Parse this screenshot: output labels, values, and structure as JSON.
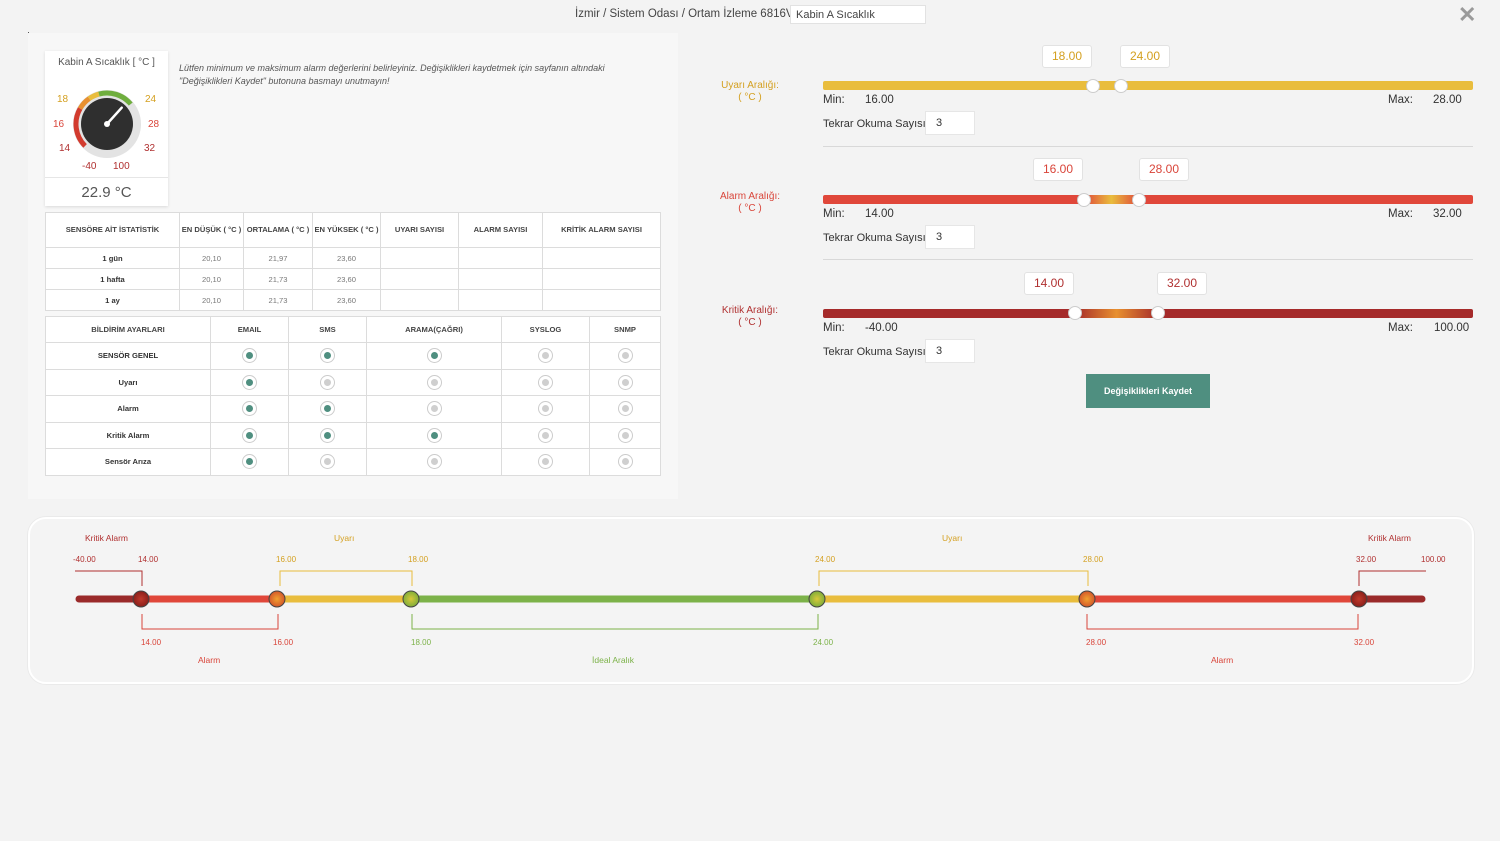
{
  "header": {
    "breadcrumb": "İzmir / Sistem Odası / Ortam İzleme 6816V /",
    "sensor_name": "Kabin A Sıcaklık"
  },
  "gauge": {
    "title": "Kabin A Sıcaklık [ °C ]",
    "value_text": "22.9 °C",
    "value": 22.9,
    "labels": {
      "warn_min": "18",
      "warn_max": "24",
      "alarm_min": "16",
      "alarm_max": "28",
      "crit_min": "14",
      "crit_max": "32",
      "range_min": "-40",
      "range_max": "100"
    }
  },
  "info_text": "Lütfen minimum ve maksimum alarm değerlerini belirleyiniz. Değişiklikleri kaydetmek için sayfanın altındaki \"Değişiklikleri Kaydet\" butonuna basmayı unutmayın!",
  "stats": {
    "headers": [
      "SENSÖRE AİT İSTATİSTİK",
      "EN DÜŞÜK ( °C )",
      "ORTALAMA ( °C )",
      "EN YÜKSEK ( °C )",
      "UYARI SAYISI",
      "ALARM SAYISI",
      "KRİTİK ALARM SAYISI"
    ],
    "rows": [
      {
        "label": "1 gün",
        "min": "20,10",
        "avg": "21,97",
        "max": "23,60",
        "warn": "",
        "alarm": "",
        "crit": ""
      },
      {
        "label": "1 hafta",
        "min": "20,10",
        "avg": "21,73",
        "max": "23,60",
        "warn": "",
        "alarm": "",
        "crit": ""
      },
      {
        "label": "1 ay",
        "min": "20,10",
        "avg": "21,73",
        "max": "23,60",
        "warn": "",
        "alarm": "",
        "crit": ""
      }
    ]
  },
  "notifications": {
    "headers": [
      "BİLDİRİM AYARLARI",
      "EMAIL",
      "SMS",
      "ARAMA(ÇAĞRI)",
      "SYSLOG",
      "SNMP"
    ],
    "rows": [
      {
        "label": "SENSÖR GENEL",
        "values": [
          true,
          true,
          true,
          false,
          false
        ]
      },
      {
        "label": "Uyarı",
        "values": [
          true,
          false,
          false,
          false,
          false
        ]
      },
      {
        "label": "Alarm",
        "values": [
          true,
          true,
          false,
          false,
          false
        ]
      },
      {
        "label": "Kritik Alarm",
        "values": [
          true,
          true,
          true,
          false,
          false
        ]
      },
      {
        "label": "Sensör Arıza",
        "values": [
          true,
          false,
          false,
          false,
          false
        ]
      }
    ]
  },
  "ranges": {
    "warning": {
      "label": "Uyarı Aralığı:",
      "unit": "( °C )",
      "low": "18.00",
      "high": "24.00",
      "min_label": "Min:",
      "min": "16.00",
      "max_label": "Max:",
      "max": "28.00",
      "repeat_label": "Tekrar Okuma Sayısı:",
      "repeat": "3",
      "low_value": 18,
      "high_value": 24,
      "min_value": 16,
      "max_value": 28
    },
    "alarm": {
      "label": "Alarm Aralığı:",
      "unit": "( °C )",
      "low": "16.00",
      "high": "28.00",
      "min_label": "Min:",
      "min": "14.00",
      "max_label": "Max:",
      "max": "32.00",
      "repeat_label": "Tekrar Okuma Sayısı:",
      "repeat": "3",
      "low_value": 16,
      "high_value": 28,
      "min_value": 14,
      "max_value": 32
    },
    "critical": {
      "label": "Kritik Aralığı:",
      "unit": "( °C )",
      "low": "14.00",
      "high": "32.00",
      "min_label": "Min:",
      "min": "-40.00",
      "max_label": "Max:",
      "max": "100.00",
      "repeat_label": "Tekrar Okuma Sayısı:",
      "repeat": "3",
      "low_value": 14,
      "high_value": 32,
      "min_value": -40,
      "max_value": 100
    }
  },
  "save_label": "Değişiklikleri Kaydet",
  "scale": {
    "top_labels": {
      "crit_left": "Kritik Alarm",
      "warn_left": "Uyarı",
      "warn_right": "Uyarı",
      "crit_right": "Kritik Alarm"
    },
    "bottom_labels": {
      "alarm_left": "Alarm",
      "ideal": "İdeal Aralık",
      "alarm_right": "Alarm"
    },
    "top_values": {
      "range_min": "-40.00",
      "crit_low": "14.00",
      "alarm_low": "16.00",
      "warn_low": "18.00",
      "warn_high": "24.00",
      "alarm_high": "28.00",
      "crit_high": "32.00",
      "range_max": "100.00"
    },
    "bottom_values": {
      "crit_low": "14.00",
      "alarm_low": "16.00",
      "warn_low": "18.00",
      "warn_high": "24.00",
      "alarm_high": "28.00",
      "crit_high": "32.00"
    }
  },
  "colors": {
    "accent": "#4f8f80",
    "warning": "#e9bd3d",
    "alarm": "#e0473a",
    "critical": "#a52a2a",
    "ideal": "#7cb249",
    "warning_text": "#d4a020",
    "alarm_text": "#d9453a",
    "critical_text": "#b03030"
  }
}
